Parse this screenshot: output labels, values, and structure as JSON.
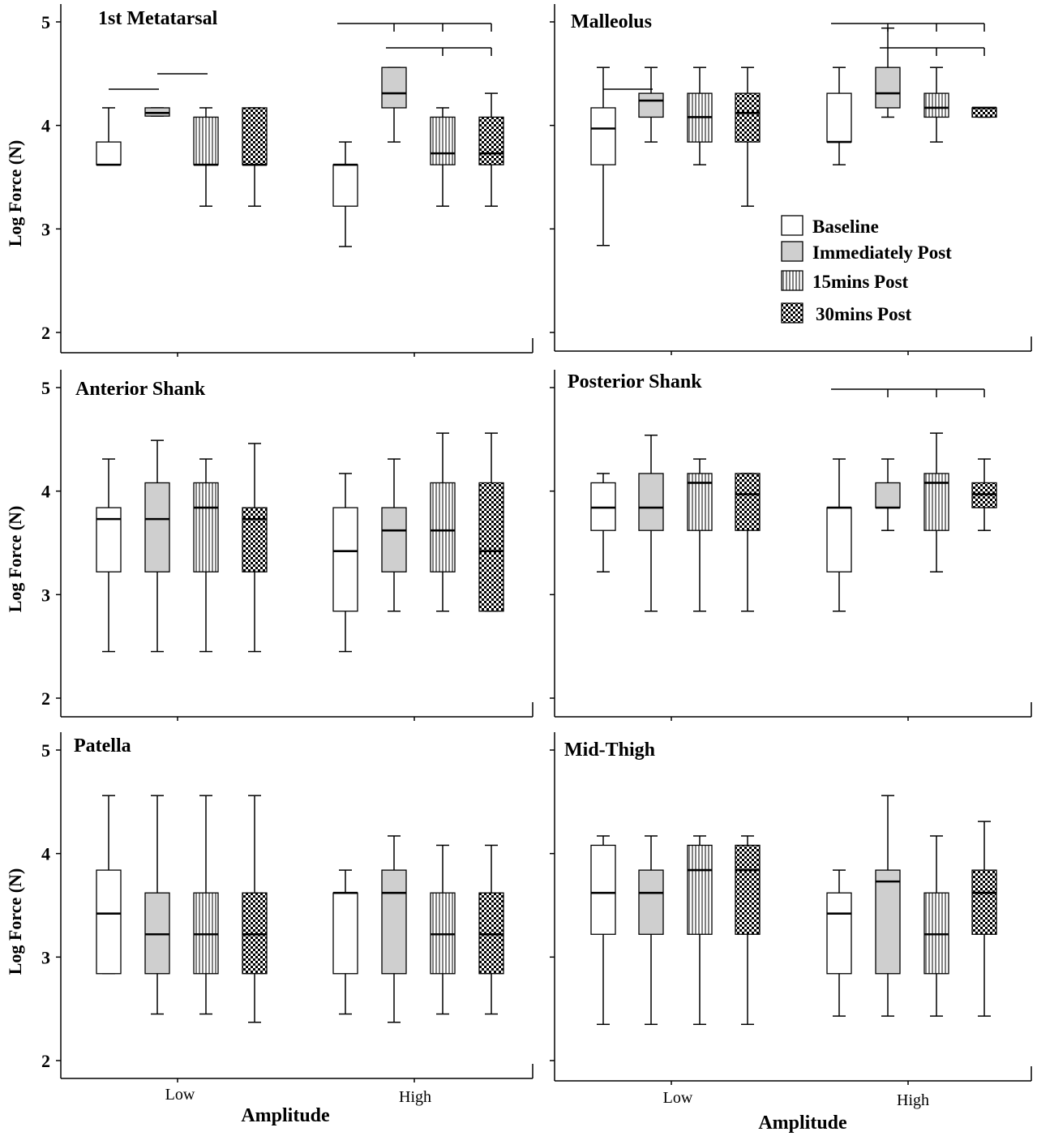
{
  "chart_data": {
    "type": "boxplot",
    "xlabel": "Amplitude",
    "ylabel": "Log Force (N)",
    "ylim": [
      2,
      5
    ],
    "yticks": [
      "2",
      "3",
      "4",
      "5"
    ],
    "categories": [
      "Low",
      "High"
    ],
    "legend": {
      "position": "inside Malleolus panel, bottom-right",
      "entries": [
        {
          "name": "Baseline",
          "fill": "white"
        },
        {
          "name": "Immediately Post",
          "fill": "gray"
        },
        {
          "name": "15mins Post",
          "fill": "vertical-stripes"
        },
        {
          "name": "30mins Post",
          "fill": "checker"
        }
      ]
    },
    "panels": [
      {
        "title": "1st Metatarsal",
        "groups": [
          {
            "category": "Low",
            "boxes": [
              {
                "series": "Baseline",
                "min": 3.62,
                "q1": 3.62,
                "median": 3.62,
                "q3": 3.84,
                "max": 4.17
              },
              {
                "series": "Immediately Post",
                "min": 4.09,
                "q1": 4.09,
                "median": 4.12,
                "q3": 4.17,
                "max": 4.17
              },
              {
                "series": "15mins Post",
                "min": 3.22,
                "q1": 3.62,
                "median": 3.62,
                "q3": 4.08,
                "max": 4.17
              },
              {
                "series": "30mins Post",
                "min": 3.22,
                "q1": 3.62,
                "median": 3.62,
                "q3": 4.17,
                "max": 4.17
              }
            ]
          },
          {
            "category": "High",
            "boxes": [
              {
                "series": "Baseline",
                "min": 2.83,
                "q1": 3.22,
                "median": 3.62,
                "q3": 3.62,
                "max": 3.84
              },
              {
                "series": "Immediately Post",
                "min": 3.84,
                "q1": 4.17,
                "median": 4.31,
                "q3": 4.56,
                "max": 4.56
              },
              {
                "series": "15mins Post",
                "min": 3.22,
                "q1": 3.62,
                "median": 3.73,
                "q3": 4.08,
                "max": 4.17
              },
              {
                "series": "30mins Post",
                "min": 3.22,
                "q1": 3.62,
                "median": 3.73,
                "q3": 4.08,
                "max": 4.31
              }
            ]
          }
        ],
        "significance": [
          {
            "category": "Low",
            "from": "Baseline",
            "to": "Immediately Post"
          },
          {
            "category": "Low",
            "from": "Immediately Post",
            "to": "15mins Post"
          },
          {
            "category": "High",
            "from": "Baseline",
            "to": [
              "Immediately Post",
              "15mins Post",
              "30mins Post"
            ]
          },
          {
            "category": "High",
            "from": "Immediately Post",
            "to": [
              "15mins Post",
              "30mins Post"
            ]
          }
        ]
      },
      {
        "title": "Malleolus",
        "groups": [
          {
            "category": "Low",
            "boxes": [
              {
                "series": "Baseline",
                "min": 2.84,
                "q1": 3.62,
                "median": 3.97,
                "q3": 4.17,
                "max": 4.56
              },
              {
                "series": "Immediately Post",
                "min": 3.84,
                "q1": 4.08,
                "median": 4.24,
                "q3": 4.31,
                "max": 4.56
              },
              {
                "series": "15mins Post",
                "min": 3.62,
                "q1": 3.84,
                "median": 4.08,
                "q3": 4.31,
                "max": 4.56
              },
              {
                "series": "30mins Post",
                "min": 3.22,
                "q1": 3.84,
                "median": 4.12,
                "q3": 4.31,
                "max": 4.56
              }
            ]
          },
          {
            "category": "High",
            "boxes": [
              {
                "series": "Baseline",
                "min": 3.62,
                "q1": 3.84,
                "median": 3.84,
                "q3": 4.31,
                "max": 4.56
              },
              {
                "series": "Immediately Post",
                "min": 4.08,
                "q1": 4.17,
                "median": 4.31,
                "q3": 4.56,
                "max": 4.94
              },
              {
                "series": "15mins Post",
                "min": 3.84,
                "q1": 4.08,
                "median": 4.17,
                "q3": 4.31,
                "max": 4.56
              },
              {
                "series": "30mins Post",
                "min": 4.08,
                "q1": 4.08,
                "median": 4.17,
                "q3": 4.17,
                "max": 4.17
              }
            ]
          }
        ],
        "significance": [
          {
            "category": "Low",
            "from": "Baseline",
            "to": "Immediately Post"
          },
          {
            "category": "High",
            "from": "Baseline",
            "to": [
              "Immediately Post",
              "15mins Post",
              "30mins Post"
            ]
          },
          {
            "category": "High",
            "from": "Immediately Post",
            "to": [
              "15mins Post",
              "30mins Post"
            ]
          }
        ]
      },
      {
        "title": "Anterior Shank",
        "groups": [
          {
            "category": "Low",
            "boxes": [
              {
                "series": "Baseline",
                "min": 2.45,
                "q1": 3.22,
                "median": 3.73,
                "q3": 3.84,
                "max": 4.31
              },
              {
                "series": "Immediately Post",
                "min": 2.45,
                "q1": 3.22,
                "median": 3.73,
                "q3": 4.08,
                "max": 4.49
              },
              {
                "series": "15mins Post",
                "min": 2.45,
                "q1": 3.22,
                "median": 3.84,
                "q3": 4.08,
                "max": 4.31
              },
              {
                "series": "30mins Post",
                "min": 2.45,
                "q1": 3.22,
                "median": 3.73,
                "q3": 3.84,
                "max": 4.46
              }
            ]
          },
          {
            "category": "High",
            "boxes": [
              {
                "series": "Baseline",
                "min": 2.45,
                "q1": 2.84,
                "median": 3.42,
                "q3": 3.84,
                "max": 4.17
              },
              {
                "series": "Immediately Post",
                "min": 2.84,
                "q1": 3.22,
                "median": 3.62,
                "q3": 3.84,
                "max": 4.31
              },
              {
                "series": "15mins Post",
                "min": 2.84,
                "q1": 3.22,
                "median": 3.62,
                "q3": 4.08,
                "max": 4.56
              },
              {
                "series": "30mins Post",
                "min": 2.84,
                "q1": 2.84,
                "median": 3.42,
                "q3": 4.08,
                "max": 4.56
              }
            ]
          }
        ],
        "significance": []
      },
      {
        "title": "Posterior Shank",
        "groups": [
          {
            "category": "Low",
            "boxes": [
              {
                "series": "Baseline",
                "min": 3.22,
                "q1": 3.62,
                "median": 3.84,
                "q3": 4.08,
                "max": 4.17
              },
              {
                "series": "Immediately Post",
                "min": 2.84,
                "q1": 3.62,
                "median": 3.84,
                "q3": 4.17,
                "max": 4.54
              },
              {
                "series": "15mins Post",
                "min": 2.84,
                "q1": 3.62,
                "median": 4.08,
                "q3": 4.17,
                "max": 4.31
              },
              {
                "series": "30mins Post",
                "min": 2.84,
                "q1": 3.62,
                "median": 3.97,
                "q3": 4.17,
                "max": 4.17
              }
            ]
          },
          {
            "category": "High",
            "boxes": [
              {
                "series": "Baseline",
                "min": 2.84,
                "q1": 3.22,
                "median": 3.84,
                "q3": 3.84,
                "max": 4.31
              },
              {
                "series": "Immediately Post",
                "min": 3.62,
                "q1": 3.84,
                "median": 3.84,
                "q3": 4.08,
                "max": 4.31
              },
              {
                "series": "15mins Post",
                "min": 3.22,
                "q1": 3.62,
                "median": 4.08,
                "q3": 4.17,
                "max": 4.56
              },
              {
                "series": "30mins Post",
                "min": 3.62,
                "q1": 3.84,
                "median": 3.97,
                "q3": 4.08,
                "max": 4.31
              }
            ]
          }
        ],
        "significance": [
          {
            "category": "High",
            "from": "Baseline",
            "to": [
              "Immediately Post",
              "15mins Post",
              "30mins Post"
            ]
          }
        ]
      },
      {
        "title": "Patella",
        "groups": [
          {
            "category": "Low",
            "boxes": [
              {
                "series": "Baseline",
                "min": 2.84,
                "q1": 2.84,
                "median": 3.42,
                "q3": 3.84,
                "max": 4.56
              },
              {
                "series": "Immediately Post",
                "min": 2.45,
                "q1": 2.84,
                "median": 3.22,
                "q3": 3.62,
                "max": 4.56
              },
              {
                "series": "15mins Post",
                "min": 2.45,
                "q1": 2.84,
                "median": 3.22,
                "q3": 3.62,
                "max": 4.56
              },
              {
                "series": "30mins Post",
                "min": 2.37,
                "q1": 2.84,
                "median": 3.22,
                "q3": 3.62,
                "max": 4.56
              }
            ]
          },
          {
            "category": "High",
            "boxes": [
              {
                "series": "Baseline",
                "min": 2.45,
                "q1": 2.84,
                "median": 3.62,
                "q3": 3.62,
                "max": 3.84
              },
              {
                "series": "Immediately Post",
                "min": 2.37,
                "q1": 2.84,
                "median": 3.62,
                "q3": 3.84,
                "max": 4.17
              },
              {
                "series": "15mins Post",
                "min": 2.45,
                "q1": 2.84,
                "median": 3.22,
                "q3": 3.62,
                "max": 4.08
              },
              {
                "series": "30mins Post",
                "min": 2.45,
                "q1": 2.84,
                "median": 3.22,
                "q3": 3.62,
                "max": 4.08
              }
            ]
          }
        ],
        "significance": []
      },
      {
        "title": "Mid-Thigh",
        "groups": [
          {
            "category": "Low",
            "boxes": [
              {
                "series": "Baseline",
                "min": 2.35,
                "q1": 3.22,
                "median": 3.62,
                "q3": 4.08,
                "max": 4.17
              },
              {
                "series": "Immediately Post",
                "min": 2.35,
                "q1": 3.22,
                "median": 3.62,
                "q3": 3.84,
                "max": 4.17
              },
              {
                "series": "15mins Post",
                "min": 2.35,
                "q1": 3.22,
                "median": 3.84,
                "q3": 4.08,
                "max": 4.17
              },
              {
                "series": "30mins Post",
                "min": 2.35,
                "q1": 3.22,
                "median": 3.84,
                "q3": 4.08,
                "max": 4.17
              }
            ]
          },
          {
            "category": "High",
            "boxes": [
              {
                "series": "Baseline",
                "min": 2.43,
                "q1": 2.84,
                "median": 3.42,
                "q3": 3.62,
                "max": 3.84
              },
              {
                "series": "Immediately Post",
                "min": 2.43,
                "q1": 2.84,
                "median": 3.73,
                "q3": 3.84,
                "max": 4.56
              },
              {
                "series": "15mins Post",
                "min": 2.43,
                "q1": 2.84,
                "median": 3.22,
                "q3": 3.62,
                "max": 4.17
              },
              {
                "series": "30mins Post",
                "min": 2.43,
                "q1": 3.22,
                "median": 3.62,
                "q3": 3.84,
                "max": 4.31
              }
            ]
          }
        ],
        "significance": []
      }
    ]
  }
}
